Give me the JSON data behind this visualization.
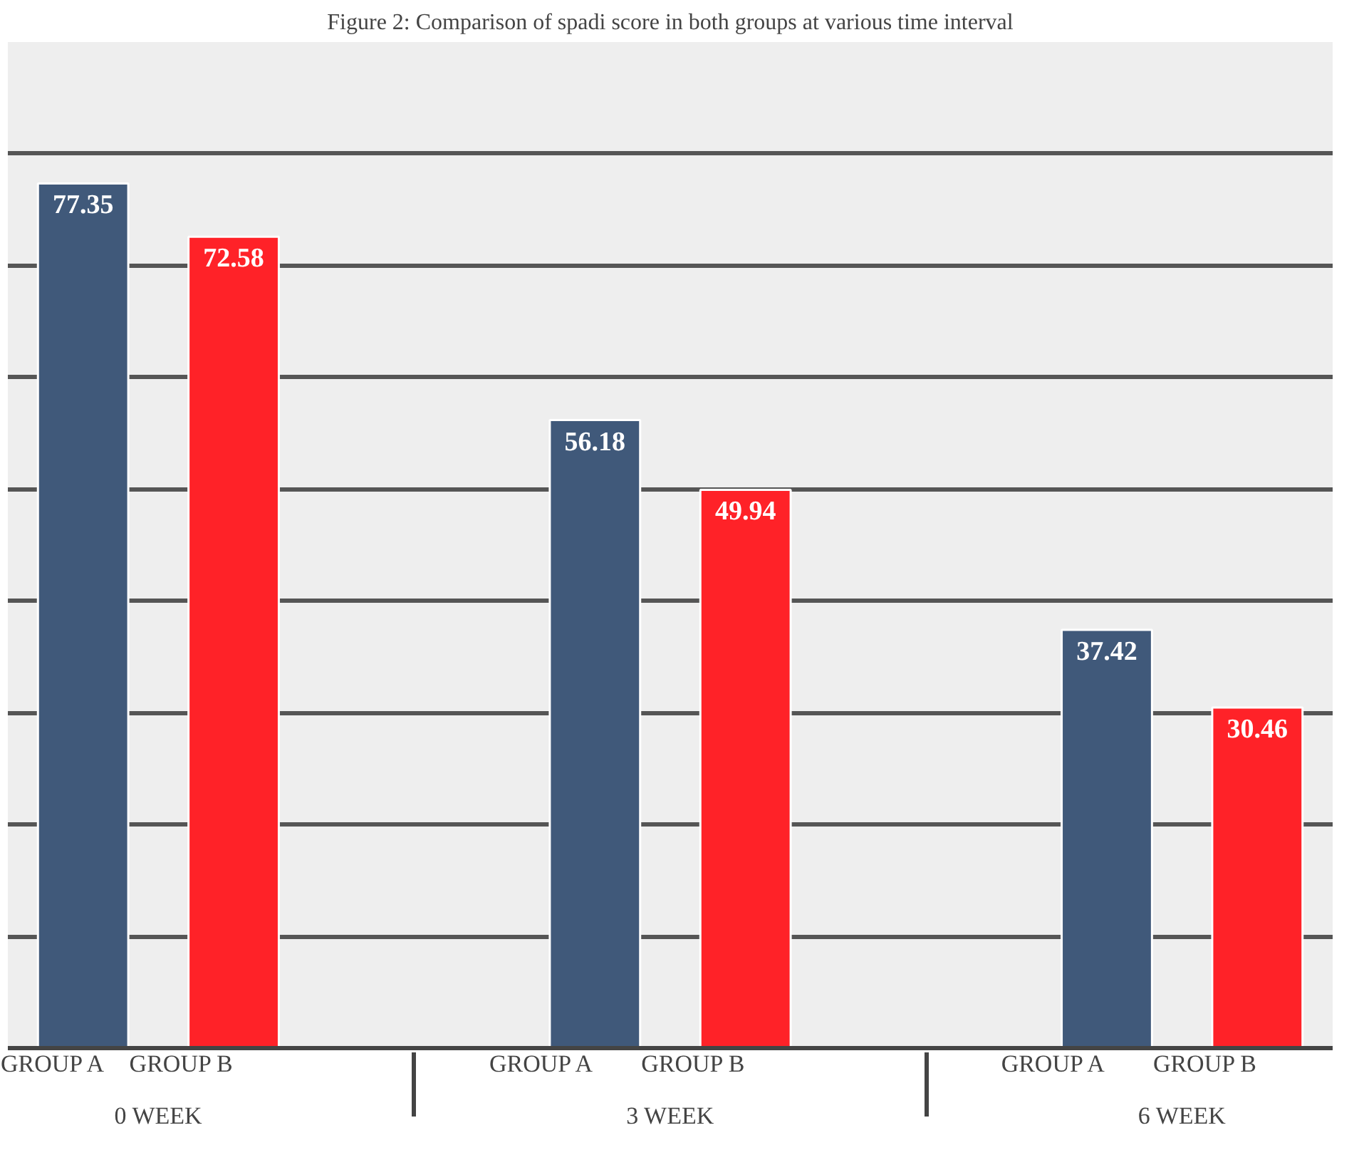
{
  "chart_data": {
    "type": "bar",
    "title": "Figure 2: Comparison of spadi score in both groups at various time interval",
    "categories": [
      "0 WEEK",
      "3 WEEK",
      "6 WEEK"
    ],
    "series": [
      {
        "name": "GROUP A",
        "color": "#40597a",
        "values": [
          77.35,
          56.18,
          37.42
        ]
      },
      {
        "name": "GROUP B",
        "color": "#ff2228",
        "values": [
          72.58,
          49.94,
          30.46
        ]
      }
    ],
    "ylim": [
      0,
      90
    ],
    "yticks": [
      {
        "value": 0,
        "label": null
      },
      {
        "value": 10,
        "label": null
      },
      {
        "value": 20,
        "label": null
      },
      {
        "value": 30,
        "label": null
      },
      {
        "value": 40,
        "label": null
      },
      {
        "value": 50,
        "label": null
      },
      {
        "value": 60,
        "label": null
      },
      {
        "value": 70,
        "label": null
      },
      {
        "value": 80,
        "label": null
      },
      {
        "value": 90,
        "label": null
      }
    ],
    "grid": "y",
    "tick_labels": "x",
    "data_labels": true,
    "legend": false
  }
}
